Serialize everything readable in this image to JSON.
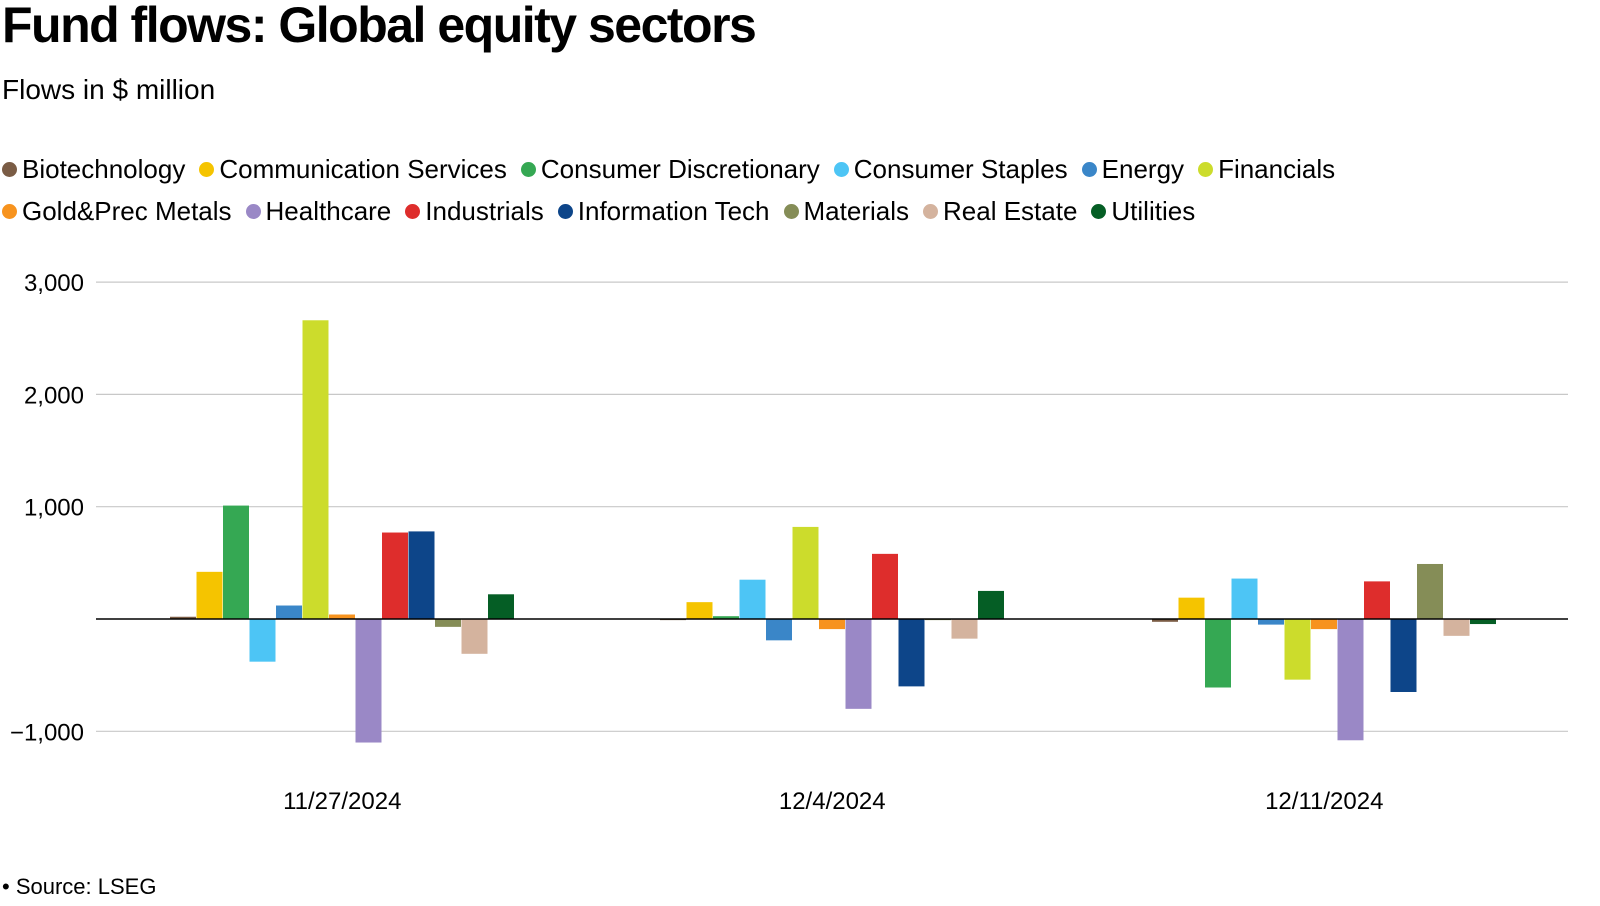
{
  "chart_data": {
    "type": "bar",
    "title": "Fund flows: Global equity sectors",
    "subtitle": "Flows in $ million",
    "source": "• Source: LSEG",
    "categories": [
      "11/27/2024",
      "12/4/2024",
      "12/11/2024"
    ],
    "ylim": [
      -1150,
      3000
    ],
    "yticks": [
      3000,
      2000,
      1000,
      -1000
    ],
    "ytick_labels": [
      "3,000",
      "2,000",
      "1,000",
      "−1,000"
    ],
    "grid": true,
    "legend_position": "top",
    "series": [
      {
        "name": "Biotechnology",
        "color": "#7a5c45",
        "values": [
          20,
          -10,
          -25
        ]
      },
      {
        "name": "Communication Services",
        "color": "#f5c400",
        "values": [
          420,
          150,
          190
        ]
      },
      {
        "name": "Consumer Discretionary",
        "color": "#35a853",
        "values": [
          1010,
          25,
          -610
        ]
      },
      {
        "name": "Consumer Staples",
        "color": "#4dc5f5",
        "values": [
          -380,
          350,
          360
        ]
      },
      {
        "name": "Energy",
        "color": "#3a86c8",
        "values": [
          120,
          -190,
          -50
        ]
      },
      {
        "name": "Financials",
        "color": "#ccdc2c",
        "values": [
          2660,
          820,
          -540
        ]
      },
      {
        "name": "Gold&Prec Metals",
        "color": "#f7931e",
        "values": [
          40,
          -90,
          -90
        ]
      },
      {
        "name": "Healthcare",
        "color": "#9a88c6",
        "values": [
          -1100,
          -800,
          -1080
        ]
      },
      {
        "name": "Industrials",
        "color": "#de2d2c",
        "values": [
          770,
          580,
          335
        ]
      },
      {
        "name": "Information Tech",
        "color": "#0d4589",
        "values": [
          780,
          -600,
          -650
        ]
      },
      {
        "name": "Materials",
        "color": "#858d57",
        "values": [
          -70,
          -10,
          490
        ]
      },
      {
        "name": "Real Estate",
        "color": "#d4b39e",
        "values": [
          -310,
          -175,
          -150
        ]
      },
      {
        "name": "Utilities",
        "color": "#055e25",
        "values": [
          220,
          250,
          -45
        ]
      }
    ]
  }
}
